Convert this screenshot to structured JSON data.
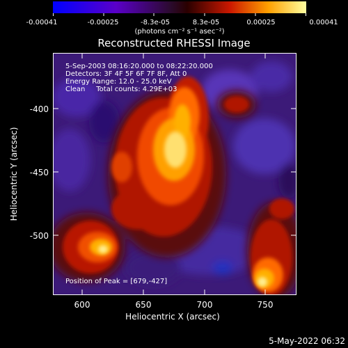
{
  "colorbar": {
    "tick_labels": [
      "-0.00041",
      "-0.00025",
      "-8.3e-05",
      "8.3e-05",
      "0.00025",
      "0.00041"
    ],
    "units_line": "(photons cm⁻² s⁻¹ asec⁻²)"
  },
  "plot": {
    "title": "Reconstructed RHESSI Image",
    "info_lines": [
      "5-Sep-2003 08:16:20.000 to 08:22:20.000",
      "Detectors: 3F 4F 5F 6F 7F 8F, Att 0",
      "Energy Range: 12.0 - 25.0 keV",
      "Clean     Total counts: 4.29E+03"
    ],
    "peak_text": "Position of Peak = [679,-427]",
    "x_axis": {
      "label": "Heliocentric X (arcsec)",
      "ticks": [
        "600",
        "650",
        "700",
        "750"
      ]
    },
    "y_axis": {
      "label": "Heliocentric Y (arcsec)",
      "ticks": [
        "-400",
        "-450",
        "-500"
      ]
    }
  },
  "footer": {
    "timestamp": "5-May-2022 06:32"
  },
  "colors": {
    "bg": "#000000",
    "text": "#ffffff"
  }
}
